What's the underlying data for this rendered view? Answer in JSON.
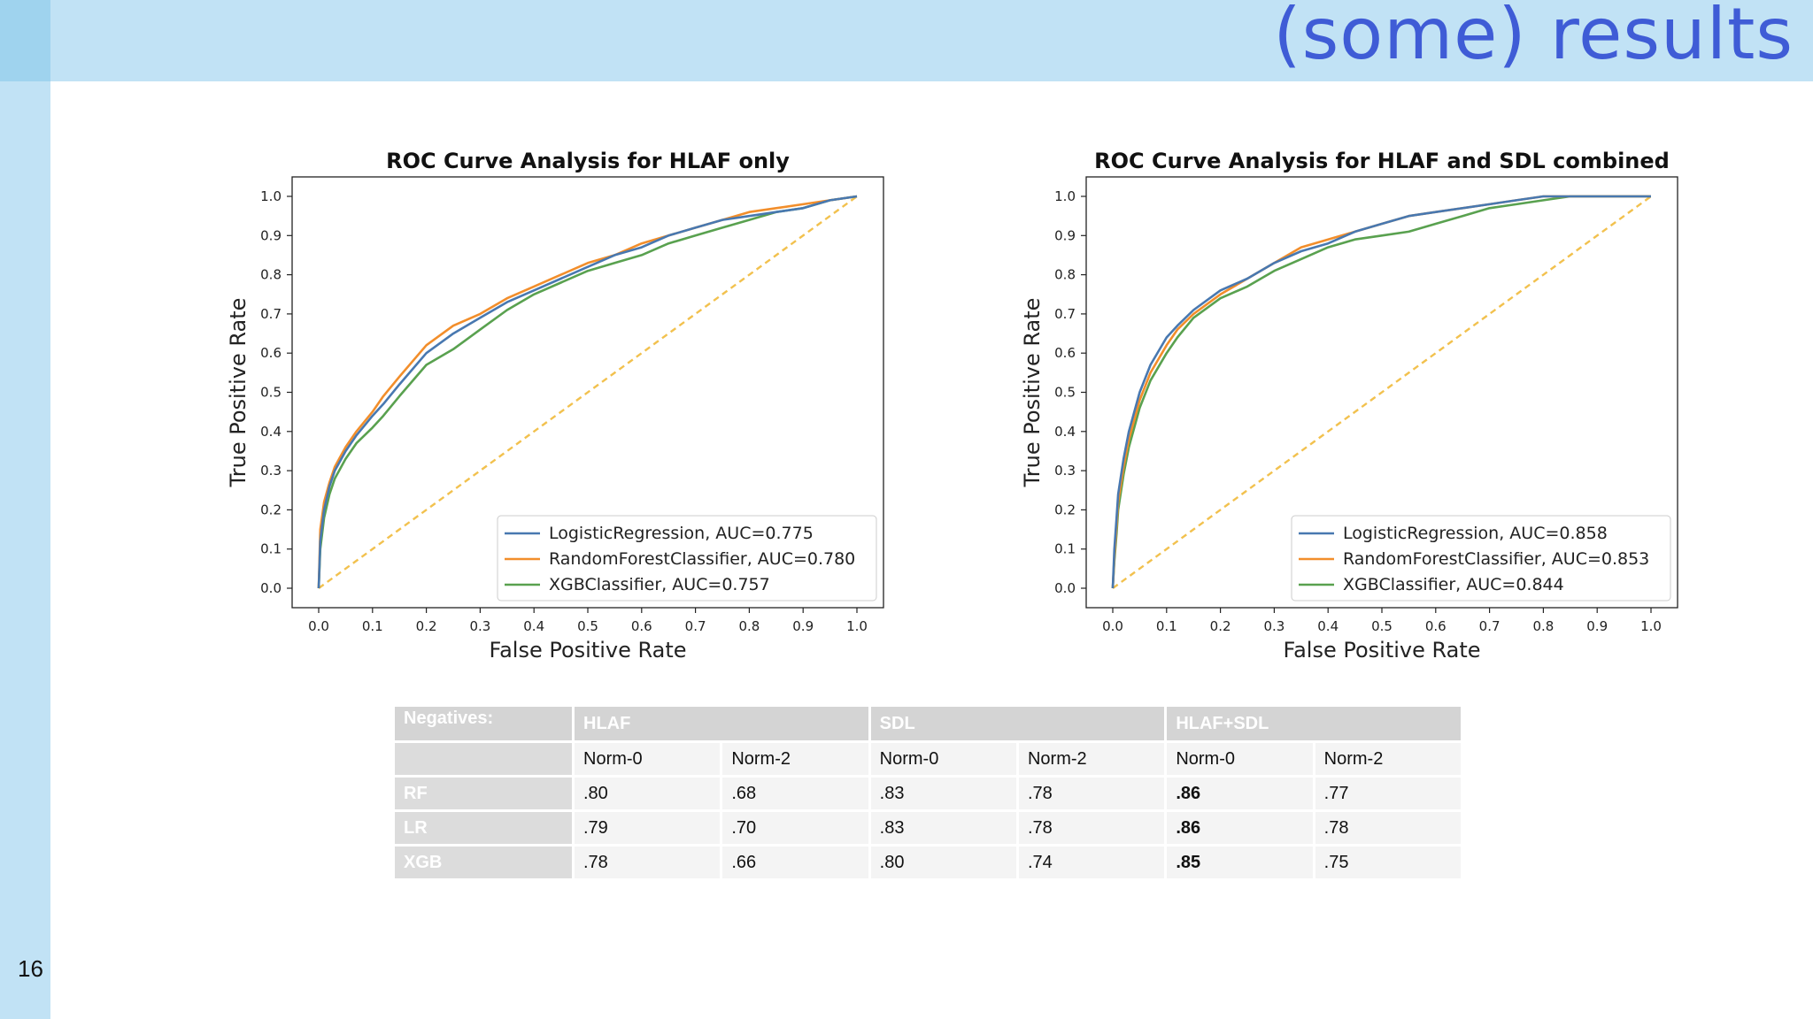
{
  "slide": {
    "title": "(some) results",
    "page_number": "16"
  },
  "chart_data": [
    {
      "type": "line",
      "title": "ROC Curve Analysis for HLAF only",
      "xlabel": "False Positive Rate",
      "ylabel": "True Positive Rate",
      "xlim": [
        0,
        1
      ],
      "ylim": [
        0,
        1
      ],
      "xticks": [
        "0.0",
        "0.1",
        "0.2",
        "0.3",
        "0.4",
        "0.5",
        "0.6",
        "0.7",
        "0.8",
        "0.9",
        "1.0"
      ],
      "yticks": [
        "0.0",
        "0.1",
        "0.2",
        "0.3",
        "0.4",
        "0.5",
        "0.6",
        "0.7",
        "0.8",
        "0.9",
        "1.0"
      ],
      "grid": false,
      "legend_position": "lower-right",
      "series": [
        {
          "name": "LogisticRegression, AUC=0.775",
          "color": "#4878b0",
          "x": [
            0,
            0.003,
            0.01,
            0.02,
            0.03,
            0.05,
            0.07,
            0.1,
            0.12,
            0.15,
            0.2,
            0.25,
            0.3,
            0.35,
            0.4,
            0.45,
            0.5,
            0.55,
            0.6,
            0.65,
            0.7,
            0.75,
            0.8,
            0.85,
            0.9,
            0.95,
            1.0
          ],
          "y": [
            0,
            0.12,
            0.2,
            0.26,
            0.3,
            0.35,
            0.39,
            0.44,
            0.47,
            0.52,
            0.6,
            0.65,
            0.69,
            0.73,
            0.76,
            0.79,
            0.82,
            0.85,
            0.87,
            0.9,
            0.92,
            0.94,
            0.95,
            0.96,
            0.97,
            0.99,
            1.0
          ]
        },
        {
          "name": "RandomForestClassifier, AUC=0.780",
          "color": "#f28e2b",
          "x": [
            0,
            0.003,
            0.01,
            0.02,
            0.03,
            0.05,
            0.07,
            0.1,
            0.12,
            0.15,
            0.2,
            0.25,
            0.3,
            0.35,
            0.4,
            0.45,
            0.5,
            0.55,
            0.6,
            0.65,
            0.7,
            0.75,
            0.8,
            0.85,
            0.9,
            0.95,
            1.0
          ],
          "y": [
            0,
            0.15,
            0.22,
            0.27,
            0.31,
            0.36,
            0.4,
            0.45,
            0.49,
            0.54,
            0.62,
            0.67,
            0.7,
            0.74,
            0.77,
            0.8,
            0.83,
            0.85,
            0.88,
            0.9,
            0.92,
            0.94,
            0.96,
            0.97,
            0.98,
            0.99,
            1.0
          ]
        },
        {
          "name": "XGBClassifier, AUC=0.757",
          "color": "#59a14f",
          "x": [
            0,
            0.003,
            0.01,
            0.02,
            0.03,
            0.05,
            0.07,
            0.1,
            0.12,
            0.15,
            0.2,
            0.25,
            0.3,
            0.35,
            0.4,
            0.45,
            0.5,
            0.55,
            0.6,
            0.65,
            0.7,
            0.75,
            0.8,
            0.85,
            0.9,
            0.95,
            1.0
          ],
          "y": [
            0,
            0.1,
            0.18,
            0.24,
            0.28,
            0.33,
            0.37,
            0.41,
            0.44,
            0.49,
            0.57,
            0.61,
            0.66,
            0.71,
            0.75,
            0.78,
            0.81,
            0.83,
            0.85,
            0.88,
            0.9,
            0.92,
            0.94,
            0.96,
            0.97,
            0.99,
            1.0
          ]
        },
        {
          "name": "",
          "color": "#f2c14e",
          "dashed": true,
          "x": [
            0,
            1
          ],
          "y": [
            0,
            1
          ]
        }
      ]
    },
    {
      "type": "line",
      "title": "ROC Curve Analysis for HLAF and SDL combined",
      "xlabel": "False Positive Rate",
      "ylabel": "True Positive Rate",
      "xlim": [
        0,
        1
      ],
      "ylim": [
        0,
        1
      ],
      "xticks": [
        "0.0",
        "0.1",
        "0.2",
        "0.3",
        "0.4",
        "0.5",
        "0.6",
        "0.7",
        "0.8",
        "0.9",
        "1.0"
      ],
      "yticks": [
        "0.0",
        "0.1",
        "0.2",
        "0.3",
        "0.4",
        "0.5",
        "0.6",
        "0.7",
        "0.8",
        "0.9",
        "1.0"
      ],
      "grid": false,
      "legend_position": "lower-right",
      "series": [
        {
          "name": "LogisticRegression, AUC=0.858",
          "color": "#4878b0",
          "x": [
            0,
            0.003,
            0.007,
            0.01,
            0.02,
            0.03,
            0.05,
            0.07,
            0.1,
            0.12,
            0.15,
            0.2,
            0.25,
            0.3,
            0.35,
            0.4,
            0.45,
            0.5,
            0.55,
            0.6,
            0.65,
            0.7,
            0.75,
            0.8,
            0.85,
            0.9,
            0.95,
            1.0
          ],
          "y": [
            0,
            0.1,
            0.18,
            0.24,
            0.33,
            0.4,
            0.5,
            0.57,
            0.64,
            0.67,
            0.71,
            0.76,
            0.79,
            0.83,
            0.86,
            0.88,
            0.91,
            0.93,
            0.95,
            0.96,
            0.97,
            0.98,
            0.99,
            1.0,
            1.0,
            1.0,
            1.0,
            1.0
          ]
        },
        {
          "name": "RandomForestClassifier, AUC=0.853",
          "color": "#f28e2b",
          "x": [
            0,
            0.003,
            0.007,
            0.01,
            0.02,
            0.03,
            0.05,
            0.07,
            0.1,
            0.12,
            0.15,
            0.2,
            0.25,
            0.3,
            0.35,
            0.4,
            0.45,
            0.5,
            0.55,
            0.6,
            0.65,
            0.7,
            0.75,
            0.8,
            0.85,
            0.9,
            0.95,
            1.0
          ],
          "y": [
            0,
            0.08,
            0.16,
            0.22,
            0.31,
            0.38,
            0.48,
            0.55,
            0.62,
            0.66,
            0.7,
            0.75,
            0.79,
            0.83,
            0.87,
            0.89,
            0.91,
            0.93,
            0.95,
            0.96,
            0.97,
            0.98,
            0.99,
            1.0,
            1.0,
            1.0,
            1.0,
            1.0
          ]
        },
        {
          "name": "XGBClassifier, AUC=0.844",
          "color": "#59a14f",
          "x": [
            0,
            0.003,
            0.007,
            0.01,
            0.02,
            0.03,
            0.05,
            0.07,
            0.1,
            0.12,
            0.15,
            0.2,
            0.25,
            0.3,
            0.35,
            0.4,
            0.45,
            0.5,
            0.55,
            0.6,
            0.65,
            0.7,
            0.75,
            0.8,
            0.85,
            0.9,
            0.95,
            1.0
          ],
          "y": [
            0,
            0.07,
            0.14,
            0.2,
            0.29,
            0.36,
            0.46,
            0.53,
            0.6,
            0.64,
            0.69,
            0.74,
            0.77,
            0.81,
            0.84,
            0.87,
            0.89,
            0.9,
            0.91,
            0.93,
            0.95,
            0.97,
            0.98,
            0.99,
            1.0,
            1.0,
            1.0,
            1.0
          ]
        },
        {
          "name": "",
          "color": "#f2c14e",
          "dashed": true,
          "x": [
            0,
            1
          ],
          "y": [
            0,
            1
          ]
        }
      ]
    }
  ],
  "table": {
    "corner_label": "Negatives:",
    "groups": [
      "HLAF",
      "SDL",
      "HLAF+SDL"
    ],
    "subheaders": [
      "Norm-0",
      "Norm-2",
      "Norm-0",
      "Norm-2",
      "Norm-0",
      "Norm-2"
    ],
    "rows": [
      {
        "label": "RF",
        "values": [
          ".80",
          ".68",
          ".83",
          ".78",
          ".86",
          ".77"
        ],
        "bold_index": 4
      },
      {
        "label": "LR",
        "values": [
          ".79",
          ".70",
          ".83",
          ".78",
          ".86",
          ".78"
        ],
        "bold_index": 4
      },
      {
        "label": "XGB",
        "values": [
          ".78",
          ".66",
          ".80",
          ".74",
          ".85",
          ".75"
        ],
        "bold_index": 4
      }
    ]
  }
}
